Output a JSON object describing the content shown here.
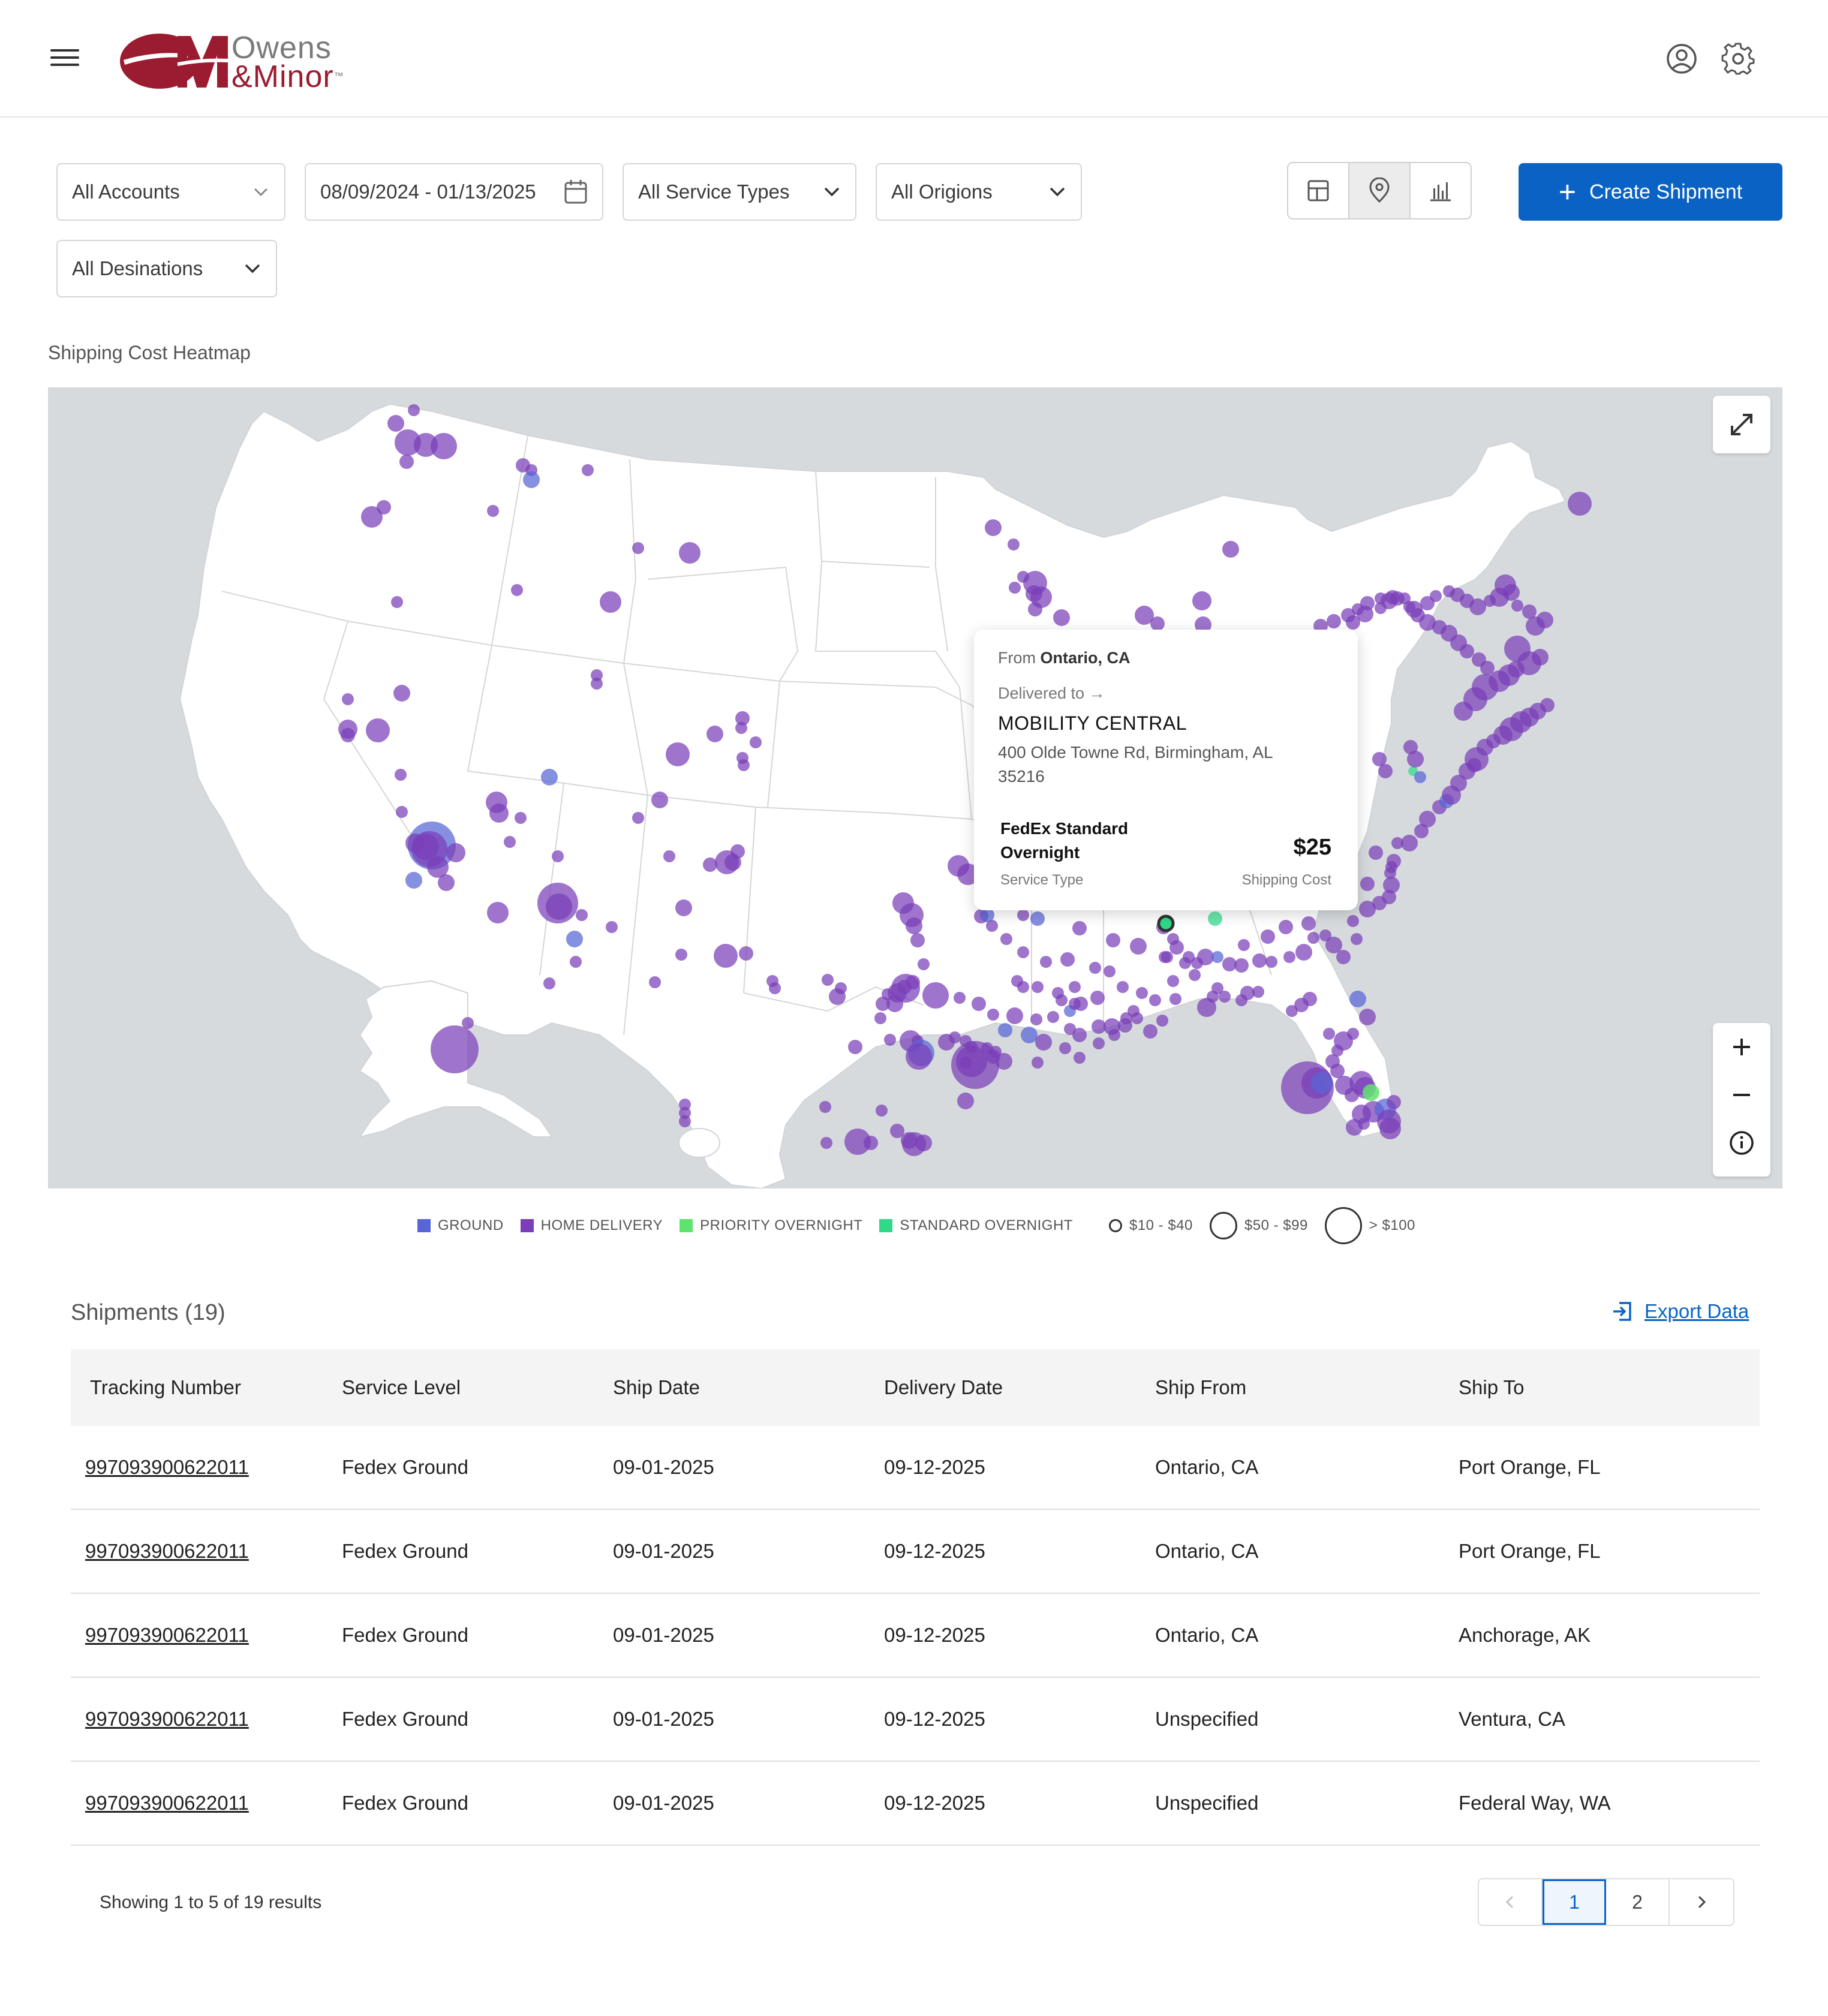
{
  "header": {
    "logo_word1": "Owens",
    "logo_word2": "&Minor",
    "logo_tm": "™"
  },
  "filters": {
    "accounts": "All Accounts",
    "date_range": "08/09/2024 - 01/13/2025",
    "service_types": "All Service Types",
    "origins": "All Origions",
    "destinations": "All Desinations"
  },
  "actions": {
    "create_shipment": "Create Shipment",
    "export_data": "Export Data"
  },
  "map": {
    "title": "Shipping Cost Heatmap",
    "tooltip": {
      "from_label": "From",
      "from_value": "Ontario, CA",
      "delivered_label": "Delivered to →",
      "recipient": "MOBILITY CENTRAL",
      "address": "400 Olde Towne Rd, Birmingham, AL 35216",
      "service": "FedEx Standard Overnight",
      "service_label": "Service Type",
      "cost": "$25",
      "cost_label": "Shipping Cost"
    }
  },
  "legend": {
    "types": [
      {
        "label": "GROUND",
        "color": "#5865d6"
      },
      {
        "label": "HOME DELIVERY",
        "color": "#7a3fb8"
      },
      {
        "label": "PRIORITY OVERNIGHT",
        "color": "#5fe36f"
      },
      {
        "label": "STANDARD OVERNIGHT",
        "color": "#2fd98a"
      }
    ],
    "sizes": [
      "$10 - $40",
      "$50 - $99",
      "> $100"
    ]
  },
  "shipments": {
    "title": "Shipments (19)",
    "columns": [
      "Tracking Number",
      "Service Level",
      "Ship Date",
      "Delivery Date",
      "Ship From",
      "Ship To"
    ],
    "rows": [
      [
        "997093900622011",
        "Fedex Ground",
        "09-01-2025",
        "09-12-2025",
        "Ontario, CA",
        "Port Orange, FL"
      ],
      [
        "997093900622011",
        "Fedex Ground",
        "09-01-2025",
        "09-12-2025",
        "Ontario, CA",
        "Port Orange, FL"
      ],
      [
        "997093900622011",
        "Fedex Ground",
        "09-01-2025",
        "09-12-2025",
        "Ontario, CA",
        "Anchorage, AK"
      ],
      [
        "997093900622011",
        "Fedex Ground",
        "09-01-2025",
        "09-12-2025",
        "Unspecified",
        "Ventura, CA"
      ],
      [
        "997093900622011",
        "Fedex Ground",
        "09-01-2025",
        "09-12-2025",
        "Unspecified",
        "Federal Way, WA"
      ]
    ],
    "showing": "Showing 1 to 5 of 19 results",
    "pages": [
      "1",
      "2"
    ],
    "current_page": "1"
  }
}
